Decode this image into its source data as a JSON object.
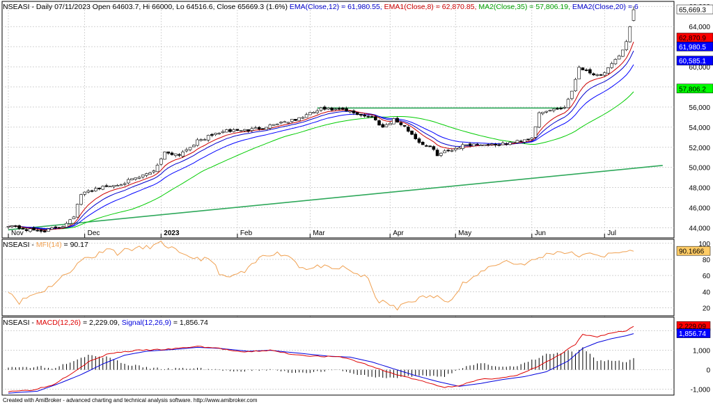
{
  "main": {
    "header": [
      {
        "text": "NSEASI - Daily 07/11/2023 Open 64603.7, Hi 66000, Lo 64516.6, Close 65669.3 (1.6%)",
        "color": "#000000"
      },
      {
        "text": "EMA(Close,12) = 61,980.55,",
        "color": "#0000cc"
      },
      {
        "text": "EMA1(Close,8) = 62,870.85,",
        "color": "#cc0000"
      },
      {
        "text": "MA2(Close,35) = 57,806.19,",
        "color": "#00a000"
      },
      {
        "text": "EMA2(Close,20) = 6",
        "color": "#0000cc"
      }
    ],
    "y_ticks": [
      "44,000",
      "46,000",
      "48,000",
      "50,000",
      "52,000",
      "54,000",
      "56,000",
      "58,000",
      "60,000",
      "62,000",
      "64,000",
      "66,000"
    ],
    "badges": [
      {
        "text": "65,669.3",
        "value": 65669.3,
        "bg": "#ffffff",
        "fg": "#000000"
      },
      {
        "text": "62,870.9",
        "value": 62870.9,
        "bg": "#ff0000",
        "fg": "#000000"
      },
      {
        "text": "61,980.5",
        "value": 61980.5,
        "bg": "#0000ff",
        "fg": "#ffffff"
      },
      {
        "text": "60,585.1",
        "value": 60585.1,
        "bg": "#0000ff",
        "fg": "#ffffff"
      },
      {
        "text": "57,806.2",
        "value": 57806.2,
        "bg": "#00ff00",
        "fg": "#000000"
      }
    ],
    "x_labels": [
      {
        "text": "Nov",
        "bar": 0,
        "bold": false
      },
      {
        "text": "Dec",
        "bar": 21,
        "bold": false
      },
      {
        "text": "2023",
        "bar": 42,
        "bold": true
      },
      {
        "text": "Feb",
        "bar": 63,
        "bold": false
      },
      {
        "text": "Mar",
        "bar": 83,
        "bold": false
      },
      {
        "text": "Apr",
        "bar": 105,
        "bold": false
      },
      {
        "text": "May",
        "bar": 123,
        "bold": false
      },
      {
        "text": "Jun",
        "bar": 144,
        "bold": false
      },
      {
        "text": "Jul",
        "bar": 164,
        "bold": false
      }
    ]
  },
  "mfi_panel": {
    "label_prefix": "NSEASI - ",
    "label_name": "MFI(14)",
    "label_value": " = 90.17",
    "y_ticks": [
      "20",
      "40",
      "60",
      "80",
      "100"
    ],
    "badge": "90.1666"
  },
  "macd_panel": {
    "label_prefix": "NSEASI - ",
    "label_macd": "MACD(12,26)",
    "label_macd_value": " = 2,229.09,",
    "label_signal": "Signal(12,26,9)",
    "label_signal_value": " = 1,856.74",
    "y_ticks": [
      "-1,000",
      "0",
      "1,000",
      "2,000"
    ],
    "badges": [
      {
        "text": "2,229.09",
        "value": 2229.09,
        "bg": "#ff0000",
        "fg": "#000000"
      },
      {
        "text": "1,856.74",
        "value": 1856.74,
        "bg": "#0000ff",
        "fg": "#ffffff"
      }
    ]
  },
  "footer": "Created with AmiBroker - advanced charting and technical analysis software. http://www.amibroker.com",
  "colors": {
    "ema12": "#0000cc",
    "ema8": "#cc0000",
    "ma35": "#00cc00",
    "ema20": "#0000ff",
    "trend": "#2ea85a",
    "mfi": "#f0a050",
    "macd": "#dd0000",
    "signal": "#0000dd",
    "grid": "#b8b8b8"
  },
  "chart_data": [
    {
      "type": "candlestick",
      "title": "NSEASI - Daily",
      "ylim": [
        43000,
        66500
      ],
      "bars": 173,
      "last_bar": {
        "date": "07/11/2023",
        "open": 64603.7,
        "high": 66000,
        "low": 64516.6,
        "close": 65669.3,
        "change_pct": 1.6
      },
      "close_anchors": [
        [
          0,
          44300
        ],
        [
          5,
          43800
        ],
        [
          10,
          43700
        ],
        [
          15,
          44200
        ],
        [
          18,
          45200
        ],
        [
          20,
          47300
        ],
        [
          24,
          47900
        ],
        [
          30,
          48300
        ],
        [
          36,
          49000
        ],
        [
          40,
          49700
        ],
        [
          43,
          51500
        ],
        [
          47,
          51300
        ],
        [
          52,
          52600
        ],
        [
          58,
          53500
        ],
        [
          62,
          53700
        ],
        [
          66,
          53700
        ],
        [
          70,
          54000
        ],
        [
          75,
          54500
        ],
        [
          79,
          54700
        ],
        [
          82,
          55200
        ],
        [
          86,
          55800
        ],
        [
          92,
          55700
        ],
        [
          96,
          55300
        ],
        [
          100,
          55000
        ],
        [
          103,
          54000
        ],
        [
          106,
          54800
        ],
        [
          110,
          53700
        ],
        [
          113,
          52500
        ],
        [
          116,
          52000
        ],
        [
          118,
          51300
        ],
        [
          122,
          51800
        ],
        [
          126,
          52300
        ],
        [
          132,
          52300
        ],
        [
          136,
          52300
        ],
        [
          140,
          52600
        ],
        [
          144,
          53000
        ],
        [
          146,
          55300
        ],
        [
          150,
          55800
        ],
        [
          153,
          56000
        ],
        [
          155,
          57600
        ],
        [
          157,
          60000
        ],
        [
          160,
          59400
        ],
        [
          163,
          59200
        ],
        [
          165,
          59800
        ],
        [
          168,
          61000
        ],
        [
          170,
          62500
        ],
        [
          172,
          65669.3
        ]
      ],
      "trendlines": [
        {
          "x1": 0,
          "y1": 43800,
          "x2": 180,
          "y2": 50200
        },
        {
          "x1": 85,
          "y1": 55900,
          "x2": 153,
          "y2": 55900
        }
      ],
      "series": [
        {
          "name": "EMA(Close,12)",
          "last": 61980.55
        },
        {
          "name": "EMA1(Close,8)",
          "last": 62870.85
        },
        {
          "name": "MA2(Close,35)",
          "last": 57806.19
        },
        {
          "name": "EMA2(Close,20)",
          "last": 60585.1
        }
      ]
    },
    {
      "type": "line",
      "title": "MFI(14)",
      "ylim": [
        10,
        105
      ],
      "last": 90.17,
      "anchors": [
        [
          0,
          42
        ],
        [
          3,
          27
        ],
        [
          6,
          35
        ],
        [
          10,
          42
        ],
        [
          14,
          55
        ],
        [
          18,
          70
        ],
        [
          21,
          82
        ],
        [
          24,
          84
        ],
        [
          27,
          95
        ],
        [
          30,
          88
        ],
        [
          33,
          93
        ],
        [
          37,
          94
        ],
        [
          40,
          97
        ],
        [
          42,
          100
        ],
        [
          45,
          94
        ],
        [
          48,
          84
        ],
        [
          52,
          82
        ],
        [
          56,
          78
        ],
        [
          58,
          64
        ],
        [
          60,
          56
        ],
        [
          63,
          62
        ],
        [
          65,
          64
        ],
        [
          67,
          72
        ],
        [
          70,
          85
        ],
        [
          73,
          88
        ],
        [
          76,
          86
        ],
        [
          78,
          82
        ],
        [
          80,
          72
        ],
        [
          83,
          68
        ],
        [
          86,
          72
        ],
        [
          89,
          67
        ],
        [
          92,
          70
        ],
        [
          96,
          62
        ],
        [
          99,
          56
        ],
        [
          100,
          42
        ],
        [
          102,
          28
        ],
        [
          105,
          24
        ],
        [
          107,
          18
        ],
        [
          109,
          26
        ],
        [
          112,
          30
        ],
        [
          115,
          34
        ],
        [
          118,
          33
        ],
        [
          121,
          30
        ],
        [
          123,
          36
        ],
        [
          125,
          50
        ],
        [
          128,
          56
        ],
        [
          131,
          68
        ],
        [
          134,
          74
        ],
        [
          137,
          78
        ],
        [
          140,
          74
        ],
        [
          143,
          76
        ],
        [
          146,
          82
        ],
        [
          149,
          88
        ],
        [
          152,
          90
        ],
        [
          155,
          87
        ],
        [
          158,
          84
        ],
        [
          161,
          88
        ],
        [
          164,
          84
        ],
        [
          167,
          88
        ],
        [
          170,
          90
        ],
        [
          172,
          90.17
        ]
      ]
    },
    {
      "type": "line",
      "title": "MACD(12,26)",
      "ylim": [
        -1300,
        2700
      ],
      "series": [
        {
          "name": "MACD(12,26)",
          "last": 2229.09,
          "anchors": [
            [
              0,
              -1100
            ],
            [
              6,
              -1050
            ],
            [
              12,
              -800
            ],
            [
              18,
              -100
            ],
            [
              22,
              400
            ],
            [
              28,
              850
            ],
            [
              36,
              1000
            ],
            [
              44,
              1050
            ],
            [
              52,
              1200
            ],
            [
              58,
              1100
            ],
            [
              64,
              900
            ],
            [
              72,
              1000
            ],
            [
              78,
              800
            ],
            [
              84,
              700
            ],
            [
              92,
              650
            ],
            [
              98,
              300
            ],
            [
              104,
              -100
            ],
            [
              110,
              -400
            ],
            [
              116,
              -700
            ],
            [
              120,
              -900
            ],
            [
              124,
              -800
            ],
            [
              130,
              -500
            ],
            [
              136,
              -400
            ],
            [
              140,
              -300
            ],
            [
              146,
              200
            ],
            [
              152,
              800
            ],
            [
              156,
              1300
            ],
            [
              158,
              1800
            ],
            [
              162,
              1700
            ],
            [
              166,
              1900
            ],
            [
              170,
              2000
            ],
            [
              172,
              2229.09
            ]
          ]
        },
        {
          "name": "Signal(12,26,9)",
          "last": 1856.74,
          "anchors": [
            [
              0,
              -1200
            ],
            [
              8,
              -1100
            ],
            [
              14,
              -700
            ],
            [
              20,
              -250
            ],
            [
              26,
              300
            ],
            [
              32,
              750
            ],
            [
              38,
              950
            ],
            [
              46,
              1050
            ],
            [
              52,
              1150
            ],
            [
              58,
              1100
            ],
            [
              66,
              950
            ],
            [
              72,
              1000
            ],
            [
              80,
              850
            ],
            [
              88,
              700
            ],
            [
              94,
              650
            ],
            [
              100,
              400
            ],
            [
              106,
              50
            ],
            [
              112,
              -300
            ],
            [
              118,
              -600
            ],
            [
              124,
              -850
            ],
            [
              130,
              -700
            ],
            [
              136,
              -500
            ],
            [
              142,
              -350
            ],
            [
              148,
              -100
            ],
            [
              154,
              450
            ],
            [
              158,
              1100
            ],
            [
              162,
              1400
            ],
            [
              166,
              1600
            ],
            [
              170,
              1750
            ],
            [
              172,
              1856.74
            ]
          ]
        }
      ]
    }
  ]
}
